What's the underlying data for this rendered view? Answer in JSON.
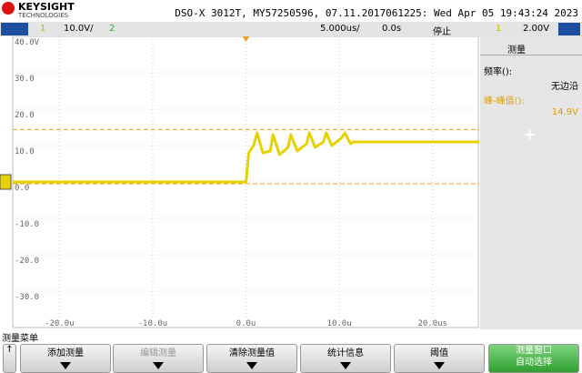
{
  "header": {
    "brand": "KEYSIGHT",
    "brand_sub": "TECHNOLOGIES",
    "info": "DSO-X 3012T, MY57250596, 07.11.2017061225: Wed Apr 05 19:43:24 2023"
  },
  "status": {
    "ch1": "1",
    "ch1_scale": "10.0V/",
    "ch2": "2",
    "timebase": "5.000us/",
    "delay": "0.0s",
    "run_state": "停止",
    "trig_ch": "1",
    "trig_level": "2.00V"
  },
  "side_panel": {
    "title": "测量",
    "items": [
      {
        "label": "频率():",
        "value": "无边沿"
      },
      {
        "label": "峰-峰值():",
        "value": "14.9V"
      }
    ],
    "add": "+"
  },
  "menu": {
    "title": "测量菜单",
    "back": "↑",
    "buttons": [
      {
        "label": "添加测量"
      },
      {
        "label": "编辑测量"
      },
      {
        "label": "清除测量值"
      },
      {
        "label": "统计信息"
      },
      {
        "label": "阈值"
      },
      {
        "label": "测量窗口",
        "sub": "自动选择"
      }
    ]
  },
  "chart_data": {
    "type": "line",
    "color": "#e6d200",
    "x": [
      -25,
      0,
      0.3,
      0.8,
      1.2,
      1.8,
      2.6,
      2.9,
      3.6,
      4.5,
      4.8,
      5.5,
      6.5,
      6.8,
      7.4,
      8.3,
      8.6,
      9.2,
      10.2,
      10.6,
      11.2,
      11.5,
      25
    ],
    "values": [
      0,
      0,
      8,
      10,
      13.5,
      8,
      8.5,
      13,
      7.5,
      9.5,
      13,
      8.5,
      10.5,
      13.5,
      9.5,
      11,
      13.5,
      10,
      12,
      13.5,
      10.5,
      11,
      11
    ],
    "xlim": [
      -25,
      25
    ],
    "ylim": [
      -40,
      40
    ],
    "xticks": [
      {
        "value": -20,
        "label": "-20.0u"
      },
      {
        "value": -10,
        "label": "-10.0u"
      },
      {
        "value": 0,
        "label": "0.0u"
      },
      {
        "value": 10,
        "label": "10.0u"
      },
      {
        "value": 20,
        "label": "20.0us"
      }
    ],
    "yticks": [
      {
        "value": 40,
        "label": "40.0V"
      },
      {
        "value": 30,
        "label": "30.0"
      },
      {
        "value": 20,
        "label": "20.0"
      },
      {
        "value": 10,
        "label": "10.0"
      },
      {
        "value": 0,
        "label": "0.0"
      },
      {
        "value": -10,
        "label": "-10.0"
      },
      {
        "value": -20,
        "label": "-20.0"
      },
      {
        "value": -30,
        "label": "-30.0"
      }
    ],
    "cursors": [
      14.4,
      -0.5
    ],
    "cursor_color": "#f0a030",
    "grid": true
  }
}
